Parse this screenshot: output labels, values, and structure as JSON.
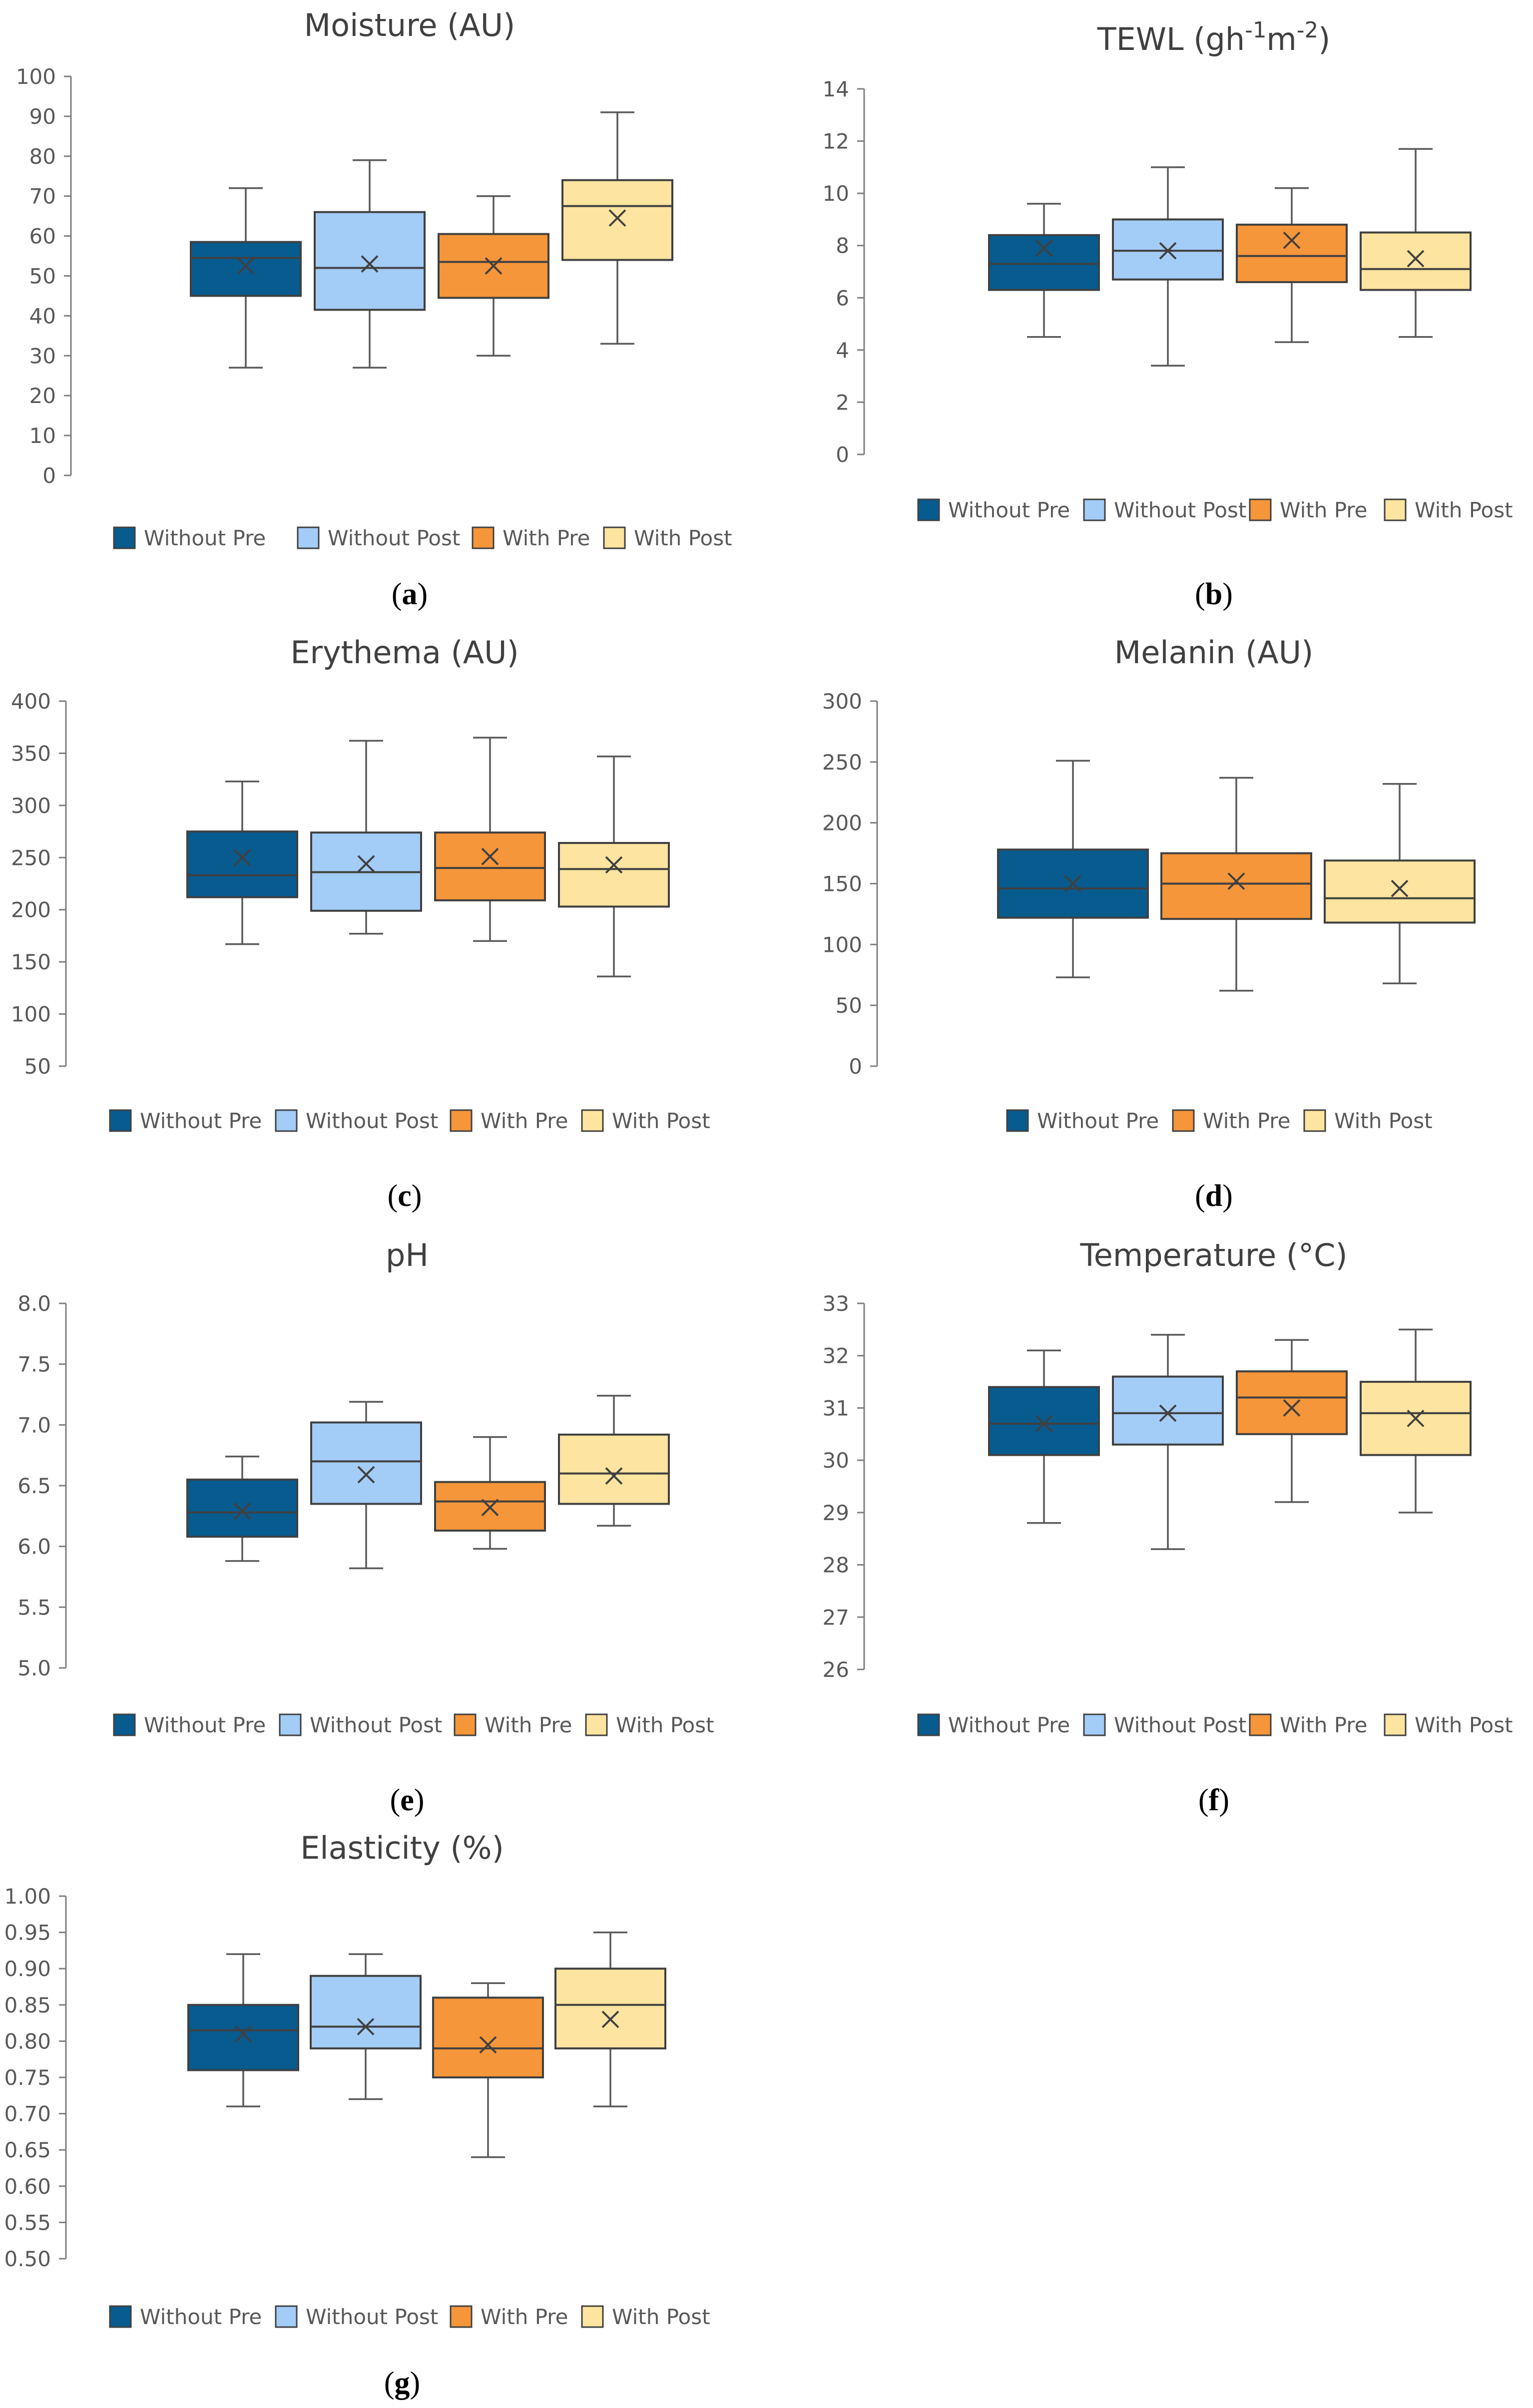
{
  "colors": {
    "Without Pre": "#075b8f",
    "Without Post": "#a3ccf7",
    "With Pre": "#f5963a",
    "With Post": "#fde4a0",
    "axis": "#7f7f7f",
    "whisker": "#595959",
    "text": "#404040"
  },
  "chart_data": [
    {
      "id": "a",
      "type": "box",
      "title_html": "Moisture (AU)",
      "panel_label": "a",
      "ylim": [
        0,
        100
      ],
      "yticks": [
        "0",
        "10",
        "20",
        "30",
        "40",
        "50",
        "60",
        "70",
        "80",
        "90",
        "100"
      ],
      "legend": [
        "Without Pre",
        "Without Post",
        "With Pre",
        "With Post"
      ],
      "series": [
        {
          "name": "Without Pre",
          "min": 27,
          "q1": 45,
          "median": 54.5,
          "q3": 58.5,
          "max": 72,
          "mean": 52.5
        },
        {
          "name": "Without Post",
          "min": 27,
          "q1": 41.5,
          "median": 52,
          "q3": 66,
          "max": 79,
          "mean": 53
        },
        {
          "name": "With Pre",
          "min": 30,
          "q1": 44.5,
          "median": 53.5,
          "q3": 60.5,
          "max": 70,
          "mean": 52.5
        },
        {
          "name": "With Post",
          "min": 33,
          "q1": 54,
          "median": 67.5,
          "q3": 74,
          "max": 91,
          "mean": 64.5
        }
      ]
    },
    {
      "id": "b",
      "type": "box",
      "title_html": "TEWL (gh<tspan baseline-shift='super' font-size='70%'>-1</tspan>m<tspan baseline-shift='super' font-size='70%'>-2</tspan>)",
      "panel_label": "b",
      "ylim": [
        0,
        14
      ],
      "yticks": [
        "0",
        "2",
        "4",
        "6",
        "8",
        "10",
        "12",
        "14"
      ],
      "legend": [
        "Without Pre",
        "Without Post",
        "With Pre",
        "With Post"
      ],
      "series": [
        {
          "name": "Without Pre",
          "min": 4.5,
          "q1": 6.3,
          "median": 7.3,
          "q3": 8.4,
          "max": 9.6,
          "mean": 7.9
        },
        {
          "name": "Without Post",
          "min": 3.4,
          "q1": 6.7,
          "median": 7.8,
          "q3": 9.0,
          "max": 11.0,
          "mean": 7.8
        },
        {
          "name": "With Pre",
          "min": 4.3,
          "q1": 6.6,
          "median": 7.6,
          "q3": 8.8,
          "max": 10.2,
          "mean": 8.2
        },
        {
          "name": "With Post",
          "min": 4.5,
          "q1": 6.3,
          "median": 7.1,
          "q3": 8.5,
          "max": 11.7,
          "mean": 7.5
        }
      ]
    },
    {
      "id": "c",
      "type": "box",
      "title_html": "Erythema (AU)",
      "panel_label": "c",
      "ylim": [
        50,
        400
      ],
      "yticks": [
        "50",
        "100",
        "150",
        "200",
        "250",
        "300",
        "350",
        "400"
      ],
      "legend": [
        "Without Pre",
        "Without Post",
        "With Pre",
        "With Post"
      ],
      "series": [
        {
          "name": "Without Pre",
          "min": 167,
          "q1": 212,
          "median": 233,
          "q3": 275,
          "max": 323,
          "mean": 250
        },
        {
          "name": "Without Post",
          "min": 177,
          "q1": 199,
          "median": 236,
          "q3": 274,
          "max": 362,
          "mean": 244
        },
        {
          "name": "With Pre",
          "min": 170,
          "q1": 209,
          "median": 240,
          "q3": 274,
          "max": 365,
          "mean": 251
        },
        {
          "name": "With Post",
          "min": 136,
          "q1": 203,
          "median": 239,
          "q3": 264,
          "max": 347,
          "mean": 243
        }
      ]
    },
    {
      "id": "d",
      "type": "box",
      "title_html": "Melanin (AU)",
      "panel_label": "d",
      "ylim": [
        0,
        300
      ],
      "yticks": [
        "0",
        "50",
        "100",
        "150",
        "200",
        "250",
        "300"
      ],
      "legend": [
        "Without Pre",
        "With Pre",
        "With Post"
      ],
      "series": [
        {
          "name": "Without Pre",
          "min": 73,
          "q1": 122,
          "median": 146,
          "q3": 178,
          "max": 251,
          "mean": 150
        },
        {
          "name": "With Pre",
          "min": 62,
          "q1": 121,
          "median": 150,
          "q3": 175,
          "max": 237,
          "mean": 152
        },
        {
          "name": "With Post",
          "min": 68,
          "q1": 118,
          "median": 138,
          "q3": 169,
          "max": 232,
          "mean": 146
        }
      ]
    },
    {
      "id": "e",
      "type": "box",
      "title_html": "pH",
      "panel_label": "e",
      "ylim": [
        5.0,
        8.0
      ],
      "yticks": [
        "5.0",
        "5.5",
        "6.0",
        "6.5",
        "7.0",
        "7.5",
        "8.0"
      ],
      "legend": [
        "Without Pre",
        "Without Post",
        "With Pre",
        "With Post"
      ],
      "series": [
        {
          "name": "Without Pre",
          "min": 5.88,
          "q1": 6.08,
          "median": 6.28,
          "q3": 6.55,
          "max": 6.74,
          "mean": 6.29
        },
        {
          "name": "Without Post",
          "min": 5.82,
          "q1": 6.35,
          "median": 6.7,
          "q3": 7.02,
          "max": 7.19,
          "mean": 6.59
        },
        {
          "name": "With Pre",
          "min": 5.98,
          "q1": 6.13,
          "median": 6.37,
          "q3": 6.53,
          "max": 6.9,
          "mean": 6.32
        },
        {
          "name": "With Post",
          "min": 6.17,
          "q1": 6.35,
          "median": 6.6,
          "q3": 6.92,
          "max": 7.24,
          "mean": 6.58
        }
      ]
    },
    {
      "id": "f",
      "type": "box",
      "title_html": "Temperature (°C)",
      "panel_label": "f",
      "ylim": [
        26,
        33
      ],
      "yticks": [
        "26",
        "27",
        "28",
        "29",
        "30",
        "31",
        "32",
        "33"
      ],
      "legend": [
        "Without Pre",
        "Without Post",
        "With Pre",
        "With Post"
      ],
      "series": [
        {
          "name": "Without Pre",
          "min": 28.8,
          "q1": 30.1,
          "median": 30.7,
          "q3": 31.4,
          "max": 32.1,
          "mean": 30.7
        },
        {
          "name": "Without Post",
          "min": 28.3,
          "q1": 30.3,
          "median": 30.9,
          "q3": 31.6,
          "max": 32.4,
          "mean": 30.9
        },
        {
          "name": "With Pre",
          "min": 29.2,
          "q1": 30.5,
          "median": 31.2,
          "q3": 31.7,
          "max": 32.3,
          "mean": 31.0
        },
        {
          "name": "With Post",
          "min": 29.0,
          "q1": 30.1,
          "median": 30.9,
          "q3": 31.5,
          "max": 32.5,
          "mean": 30.8
        }
      ]
    },
    {
      "id": "g",
      "type": "box",
      "title_html": "Elasticity (%)",
      "panel_label": "g",
      "ylim": [
        0.5,
        1.0
      ],
      "yticks": [
        "0.50",
        "0.55",
        "0.60",
        "0.65",
        "0.70",
        "0.75",
        "0.80",
        "0.85",
        "0.90",
        "0.95",
        "1.00"
      ],
      "legend": [
        "Without Pre",
        "Without Post",
        "With Pre",
        "With Post"
      ],
      "series": [
        {
          "name": "Without Pre",
          "min": 0.71,
          "q1": 0.76,
          "median": 0.815,
          "q3": 0.85,
          "max": 0.92,
          "mean": 0.81
        },
        {
          "name": "Without Post",
          "min": 0.72,
          "q1": 0.79,
          "median": 0.82,
          "q3": 0.89,
          "max": 0.92,
          "mean": 0.82
        },
        {
          "name": "With Pre",
          "min": 0.64,
          "q1": 0.75,
          "median": 0.79,
          "q3": 0.86,
          "max": 0.88,
          "mean": 0.795
        },
        {
          "name": "With Post",
          "min": 0.71,
          "q1": 0.79,
          "median": 0.85,
          "q3": 0.9,
          "max": 0.95,
          "mean": 0.83
        }
      ]
    }
  ]
}
